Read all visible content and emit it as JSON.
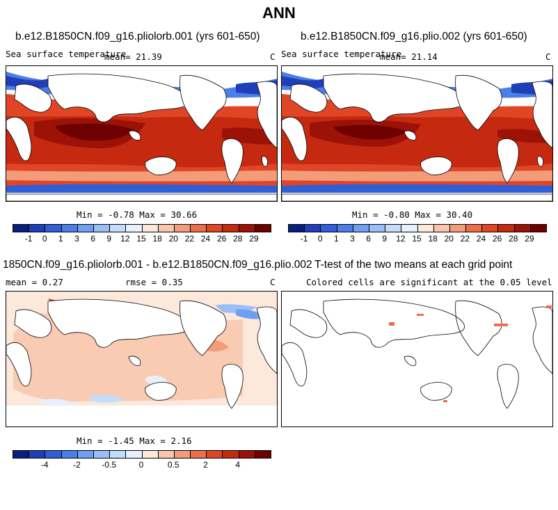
{
  "title": "ANN",
  "panels": {
    "p1": {
      "title": "b.e12.B1850CN.f09_g16.pliolorb.001 (yrs 601-650)",
      "var": "Sea surface temperature",
      "mean": "mean=  21.39",
      "unit": "C",
      "minmax": "Min =  -0.78 Max =  30.66"
    },
    "p2": {
      "title": "b.e12.B1850CN.f09_g16.plio.002 (yrs 601-650)",
      "var": "Sea surface temperature",
      "mean": "mean=  21.14",
      "unit": "C",
      "minmax": "Min =  -0.80 Max =  30.40"
    },
    "p3": {
      "title": "1850CN.f09_g16.pliolorb.001 - b.e12.B1850CN.f09_g16.plio.002",
      "mean": "mean =   0.27",
      "rmse": "rmse =   0.35",
      "unit": "C",
      "minmax": "Min =  -1.45 Max =   2.16"
    },
    "p4": {
      "title": "T-test of the two means at each grid point",
      "sub": "Colored cells are significant at the 0.05 level"
    }
  },
  "colorbars": {
    "abs": {
      "labels": [
        "-1",
        "0",
        "1",
        "3",
        "6",
        "9",
        "12",
        "15",
        "18",
        "20",
        "22",
        "24",
        "26",
        "28",
        "29"
      ],
      "colors": [
        "#0a1e7d",
        "#1f3fb8",
        "#2f5fd8",
        "#4a7fe8",
        "#6f9ff2",
        "#98bff8",
        "#c2dcfb",
        "#e6f1fd",
        "#fde8dc",
        "#f9c5ac",
        "#f39c7a",
        "#ec6e4b",
        "#e04526",
        "#c52a10",
        "#9c1207",
        "#6e0000"
      ]
    },
    "diff": {
      "labels": [
        "-4",
        "-2",
        "-0.5",
        "0",
        "0.5",
        "2",
        "4"
      ],
      "colors": [
        "#0a1e7d",
        "#1f3fb8",
        "#2f5fd8",
        "#4a7fe8",
        "#6f9ff2",
        "#98bff8",
        "#c2dcfb",
        "#e6f1fd",
        "#fde8dc",
        "#f9c5ac",
        "#f39c7a",
        "#ec6e4b",
        "#e04526",
        "#c52a10",
        "#9c1207",
        "#6e0000"
      ]
    }
  }
}
